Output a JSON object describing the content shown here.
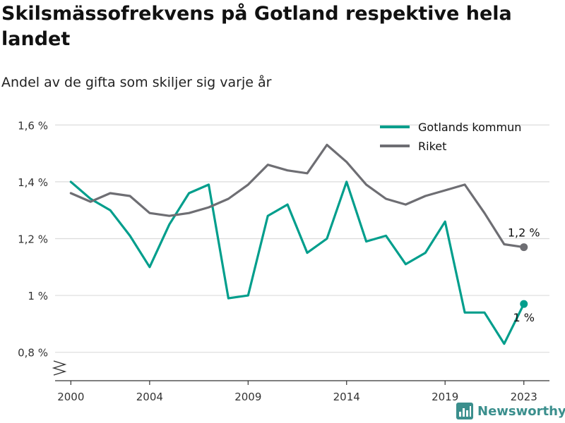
{
  "header": {
    "title": "Skilsmässofrekvens på Gotland respektive hela landet",
    "subtitle": "Andel av de gifta som skiljer sig varje år"
  },
  "brand": {
    "name": "Newsworthy",
    "color": "#3b8f8d"
  },
  "chart_data": {
    "type": "line",
    "x": [
      2000,
      2001,
      2002,
      2003,
      2004,
      2005,
      2006,
      2007,
      2008,
      2009,
      2010,
      2011,
      2012,
      2013,
      2014,
      2015,
      2016,
      2017,
      2018,
      2019,
      2020,
      2021,
      2022,
      2023
    ],
    "series": [
      {
        "name": "Gotlands kommun",
        "color": "#009e8c",
        "values": [
          1.4,
          1.34,
          1.3,
          1.21,
          1.1,
          1.25,
          1.36,
          1.39,
          0.99,
          1.0,
          1.28,
          1.32,
          1.15,
          1.2,
          1.4,
          1.19,
          1.21,
          1.11,
          1.15,
          1.26,
          0.94,
          0.94,
          0.83,
          0.97
        ],
        "end_label": "1 %"
      },
      {
        "name": "Riket",
        "color": "#6e6e73",
        "values": [
          1.36,
          1.33,
          1.36,
          1.35,
          1.29,
          1.28,
          1.29,
          1.31,
          1.34,
          1.39,
          1.46,
          1.44,
          1.43,
          1.53,
          1.47,
          1.39,
          1.34,
          1.32,
          1.35,
          1.37,
          1.39,
          1.29,
          1.18,
          1.17
        ],
        "end_label": "1,2 %"
      }
    ],
    "x_ticks": [
      {
        "value": 2000,
        "label": "2000"
      },
      {
        "value": 2004,
        "label": "2004"
      },
      {
        "value": 2009,
        "label": "2009"
      },
      {
        "value": 2014,
        "label": "2014"
      },
      {
        "value": 2019,
        "label": "2019"
      },
      {
        "value": 2023,
        "label": "2023"
      }
    ],
    "y_ticks": [
      {
        "value": 0.8,
        "label": "0,8 %"
      },
      {
        "value": 1.0,
        "label": "1 %"
      },
      {
        "value": 1.2,
        "label": "1,2 %"
      },
      {
        "value": 1.4,
        "label": "1,4 %"
      },
      {
        "value": 1.6,
        "label": "1,6 %"
      }
    ],
    "xlim": [
      1999.2,
      2024.3
    ],
    "ylim": [
      0.7,
      1.6
    ],
    "y_axis_broken": true,
    "grid": "horizontal",
    "legend_position": "top-right",
    "xlabel": "",
    "ylabel": ""
  }
}
